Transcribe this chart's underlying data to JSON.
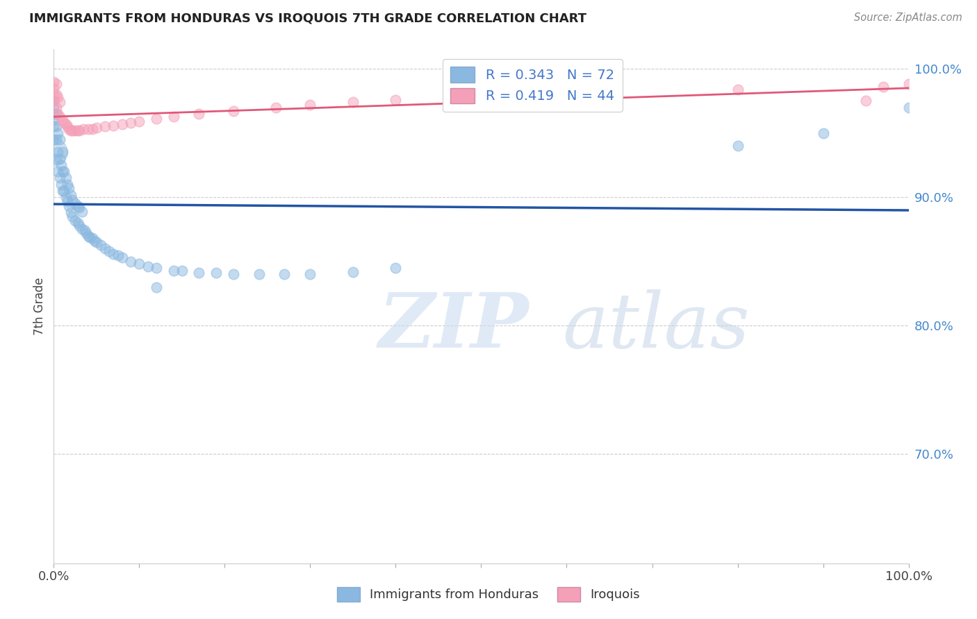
{
  "title": "IMMIGRANTS FROM HONDURAS VS IROQUOIS 7TH GRADE CORRELATION CHART",
  "source": "Source: ZipAtlas.com",
  "ylabel": "7th Grade",
  "xlim": [
    0.0,
    1.0
  ],
  "ylim": [
    0.615,
    1.015
  ],
  "x_ticks": [
    0.0,
    0.1,
    0.2,
    0.3,
    0.4,
    0.5,
    0.6,
    0.7,
    0.8,
    0.9,
    1.0
  ],
  "y_ticks_right": [
    0.7,
    0.8,
    0.9,
    1.0
  ],
  "y_tick_labels_right": [
    "70.0%",
    "80.0%",
    "90.0%",
    "100.0%"
  ],
  "legend_label_blue": "Immigrants from Honduras",
  "legend_label_pink": "Iroquois",
  "R_blue": "0.343",
  "N_blue": "72",
  "R_pink": "0.419",
  "N_pink": "44",
  "color_blue": "#8ab8e0",
  "color_pink": "#f4a0b8",
  "color_line_blue": "#2255a4",
  "color_line_pink": "#e05878",
  "blue_x": [
    0.0,
    0.0,
    0.0,
    0.0,
    0.0,
    0.0,
    0.003,
    0.003,
    0.003,
    0.003,
    0.005,
    0.005,
    0.005,
    0.007,
    0.007,
    0.007,
    0.009,
    0.009,
    0.01,
    0.01,
    0.01,
    0.012,
    0.012,
    0.014,
    0.014,
    0.016,
    0.016,
    0.018,
    0.018,
    0.02,
    0.02,
    0.022,
    0.022,
    0.025,
    0.025,
    0.028,
    0.028,
    0.03,
    0.03,
    0.033,
    0.033,
    0.036,
    0.038,
    0.04,
    0.042,
    0.045,
    0.048,
    0.05,
    0.055,
    0.06,
    0.065,
    0.07,
    0.075,
    0.08,
    0.09,
    0.1,
    0.11,
    0.12,
    0.14,
    0.15,
    0.17,
    0.19,
    0.21,
    0.24,
    0.27,
    0.3,
    0.35,
    0.4,
    0.12,
    0.8,
    0.9,
    1.0
  ],
  "blue_y": [
    0.945,
    0.955,
    0.96,
    0.965,
    0.97,
    0.975,
    0.93,
    0.945,
    0.955,
    0.965,
    0.92,
    0.935,
    0.95,
    0.915,
    0.93,
    0.945,
    0.91,
    0.925,
    0.905,
    0.92,
    0.935,
    0.905,
    0.92,
    0.9,
    0.915,
    0.897,
    0.91,
    0.893,
    0.907,
    0.888,
    0.902,
    0.885,
    0.898,
    0.882,
    0.895,
    0.88,
    0.893,
    0.878,
    0.892,
    0.875,
    0.889,
    0.874,
    0.872,
    0.87,
    0.869,
    0.868,
    0.866,
    0.865,
    0.863,
    0.86,
    0.858,
    0.856,
    0.855,
    0.853,
    0.85,
    0.848,
    0.846,
    0.845,
    0.843,
    0.843,
    0.841,
    0.841,
    0.84,
    0.84,
    0.84,
    0.84,
    0.842,
    0.845,
    0.83,
    0.94,
    0.95,
    0.97
  ],
  "blue_large_x": [
    0.0
  ],
  "blue_large_y": [
    0.935
  ],
  "pink_x": [
    0.0,
    0.0,
    0.0,
    0.0,
    0.003,
    0.003,
    0.003,
    0.005,
    0.005,
    0.007,
    0.007,
    0.01,
    0.012,
    0.014,
    0.016,
    0.018,
    0.02,
    0.022,
    0.025,
    0.028,
    0.03,
    0.035,
    0.04,
    0.045,
    0.05,
    0.06,
    0.07,
    0.08,
    0.09,
    0.1,
    0.12,
    0.14,
    0.17,
    0.21,
    0.26,
    0.3,
    0.35,
    0.4,
    0.5,
    0.6,
    0.8,
    0.95,
    0.97,
    1.0
  ],
  "pink_y": [
    0.975,
    0.98,
    0.985,
    0.99,
    0.97,
    0.98,
    0.988,
    0.965,
    0.978,
    0.963,
    0.974,
    0.96,
    0.958,
    0.957,
    0.955,
    0.953,
    0.952,
    0.952,
    0.952,
    0.952,
    0.952,
    0.953,
    0.953,
    0.953,
    0.954,
    0.955,
    0.956,
    0.957,
    0.958,
    0.959,
    0.961,
    0.963,
    0.965,
    0.967,
    0.97,
    0.972,
    0.974,
    0.976,
    0.978,
    0.98,
    0.984,
    0.975,
    0.986,
    0.988
  ]
}
